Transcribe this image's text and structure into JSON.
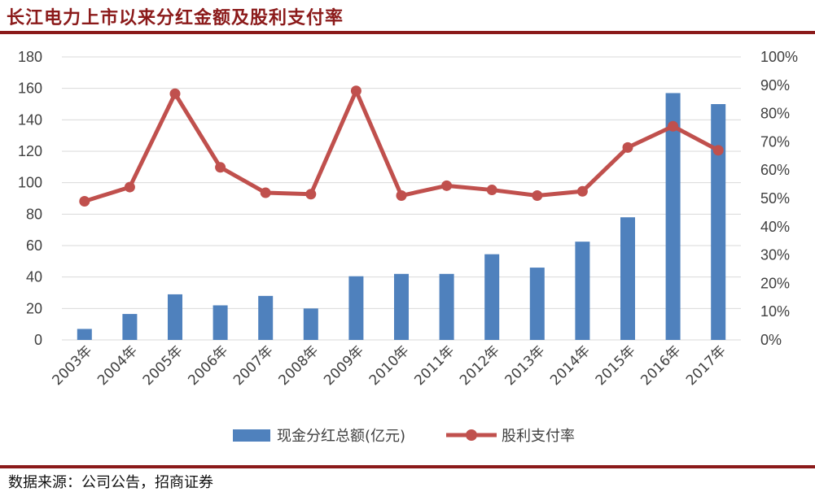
{
  "title": "长江电力上市以来分红金额及股利支付率",
  "source": "数据来源：公司公告，招商证券",
  "colors": {
    "bar": "#4F81BD",
    "line": "#C0504D",
    "rule": "#8B1A1A"
  },
  "chart_data": {
    "type": "bar",
    "categories": [
      "2003年",
      "2004年",
      "2005年",
      "2006年",
      "2007年",
      "2008年",
      "2009年",
      "2010年",
      "2011年",
      "2012年",
      "2013年",
      "2014年",
      "2015年",
      "2016年",
      "2017年"
    ],
    "series": [
      {
        "name": "现金分红总额(亿元)",
        "type": "bar",
        "axis": "left",
        "values": [
          7,
          16.5,
          29,
          22,
          28,
          20,
          40.5,
          42,
          42,
          54.5,
          46,
          62.5,
          78,
          157,
          150
        ]
      },
      {
        "name": "股利支付率",
        "type": "line",
        "axis": "right",
        "values": [
          49,
          54,
          87,
          61,
          52,
          51.5,
          88,
          51,
          54.5,
          53,
          51,
          52.5,
          68,
          75.5,
          67
        ]
      }
    ],
    "y_left": {
      "min": 0,
      "max": 180,
      "ticks": [
        "0",
        "20",
        "40",
        "60",
        "80",
        "100",
        "120",
        "140",
        "160",
        "180"
      ]
    },
    "y_right": {
      "min": 0,
      "max": 100,
      "ticks": [
        "0%",
        "10%",
        "20%",
        "30%",
        "40%",
        "50%",
        "60%",
        "70%",
        "80%",
        "90%",
        "100%"
      ]
    },
    "grid": true,
    "legend": "bottom"
  }
}
